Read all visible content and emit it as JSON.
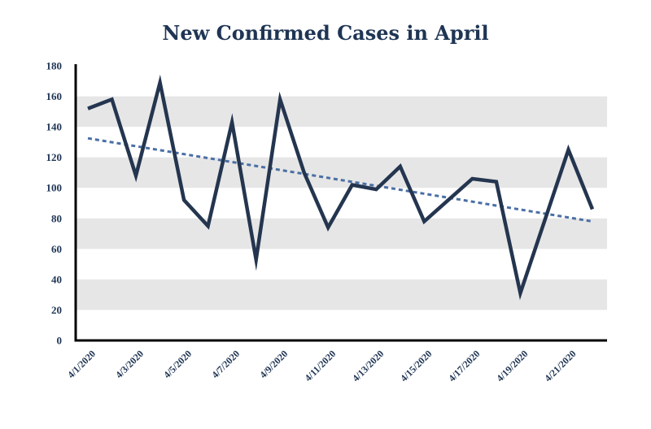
{
  "chart_data": {
    "type": "line",
    "title": "New Confirmed Cases in April",
    "xlabel": "",
    "ylabel": "",
    "ylim": [
      0,
      180
    ],
    "ytick_step": 20,
    "categories": [
      "4/1/2020",
      "4/2/2020",
      "4/3/2020",
      "4/4/2020",
      "4/5/2020",
      "4/6/2020",
      "4/7/2020",
      "4/8/2020",
      "4/9/2020",
      "4/10/2020",
      "4/11/2020",
      "4/12/2020",
      "4/13/2020",
      "4/14/2020",
      "4/15/2020",
      "4/16/2020",
      "4/17/2020",
      "4/18/2020",
      "4/19/2020",
      "4/20/2020",
      "4/21/2020",
      "4/22/2020"
    ],
    "x_tick_labels": [
      "4/1/2020",
      "4/3/2020",
      "4/5/2020",
      "4/7/2020",
      "4/9/2020",
      "4/11/2020",
      "4/13/2020",
      "4/15/2020",
      "4/17/2020",
      "4/19/2020",
      "4/21/2020"
    ],
    "series": [
      {
        "name": "New Confirmed Cases",
        "values": [
          152,
          158,
          108,
          169,
          92,
          75,
          143,
          53,
          158,
          110,
          74,
          102,
          99,
          114,
          78,
          92,
          106,
          104,
          31,
          78,
          125,
          86
        ]
      }
    ],
    "trendline": {
      "type": "linear",
      "start": 132.5,
      "end": 78
    },
    "grid": "horizontal-bands",
    "colors": {
      "line": "#24354f",
      "trend": "#4a6fa5",
      "band": "#e6e6e6",
      "axis": "#000000",
      "text": "#1f3554"
    }
  }
}
